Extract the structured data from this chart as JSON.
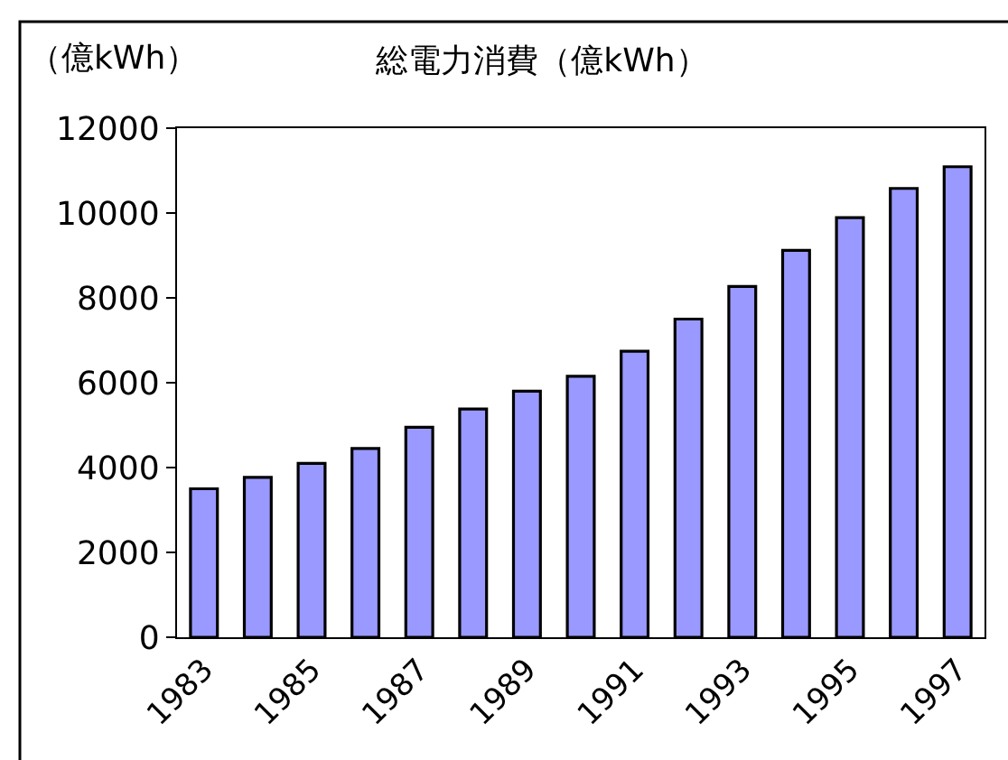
{
  "chart_data": {
    "type": "bar",
    "title": "総電力消費（億kWh）",
    "ylabel": "（億kWh）",
    "categories": [
      "1983",
      null,
      "1985",
      null,
      "1987",
      null,
      "1989",
      null,
      "1991",
      null,
      "1993",
      null,
      "1995",
      null,
      "1997"
    ],
    "values": [
      3500,
      3770,
      4100,
      4450,
      4950,
      5380,
      5800,
      6150,
      6740,
      7500,
      8270,
      9120,
      9890,
      10580,
      11090
    ],
    "color": "#9999ff",
    "ylim": [
      0,
      12000
    ],
    "yticks": [
      0,
      2000,
      4000,
      6000,
      8000,
      10000,
      12000
    ]
  }
}
